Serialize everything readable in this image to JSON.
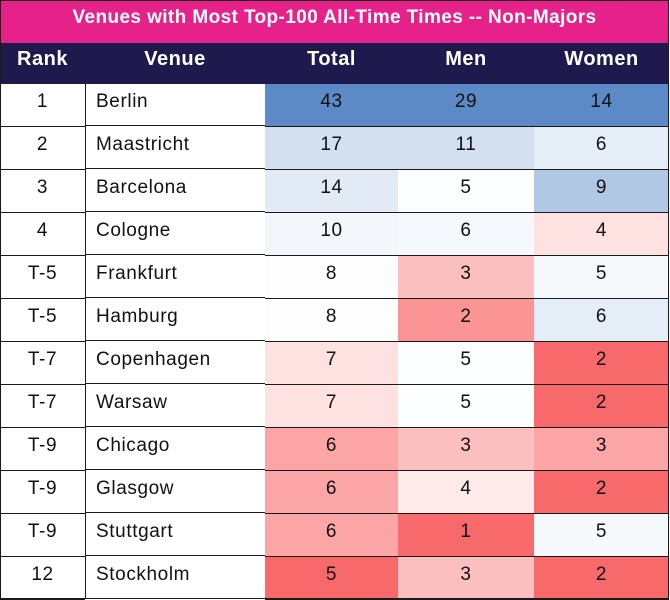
{
  "title": "Venues with Most Top-100 All-Time Times -- Non-Majors",
  "headers": {
    "rank": "Rank",
    "venue": "Venue",
    "total": "Total",
    "men": "Men",
    "women": "Women"
  },
  "colors": {
    "title_bg": "#e6218a",
    "header_bg": "#1f1a4d",
    "scale_high": "#5b8ac6",
    "scale_mid": "#ffffff",
    "scale_low": "#f8696b"
  },
  "chart_data": {
    "type": "table",
    "title": "Venues with Most Top-100 All-Time Times -- Non-Majors",
    "columns": [
      "Rank",
      "Venue",
      "Total",
      "Men",
      "Women"
    ],
    "rows": [
      {
        "rank": "1",
        "venue": "Berlin",
        "total": 43,
        "men": 29,
        "women": 14
      },
      {
        "rank": "2",
        "venue": "Maastricht",
        "total": 17,
        "men": 11,
        "women": 6
      },
      {
        "rank": "3",
        "venue": "Barcelona",
        "total": 14,
        "men": 5,
        "women": 9
      },
      {
        "rank": "4",
        "venue": "Cologne",
        "total": 10,
        "men": 6,
        "women": 4
      },
      {
        "rank": "T-5",
        "venue": "Frankfurt",
        "total": 8,
        "men": 3,
        "women": 5
      },
      {
        "rank": "T-5",
        "venue": "Hamburg",
        "total": 8,
        "men": 2,
        "women": 6
      },
      {
        "rank": "T-7",
        "venue": "Copenhagen",
        "total": 7,
        "men": 5,
        "women": 2
      },
      {
        "rank": "T-7",
        "venue": "Warsaw",
        "total": 7,
        "men": 5,
        "women": 2
      },
      {
        "rank": "T-9",
        "venue": "Chicago",
        "total": 6,
        "men": 3,
        "women": 3
      },
      {
        "rank": "T-9",
        "venue": "Glasgow",
        "total": 6,
        "men": 4,
        "women": 2
      },
      {
        "rank": "T-9",
        "venue": "Stuttgart",
        "total": 6,
        "men": 1,
        "women": 5
      },
      {
        "rank": "12",
        "venue": "Stockholm",
        "total": 5,
        "men": 3,
        "women": 2
      }
    ]
  }
}
